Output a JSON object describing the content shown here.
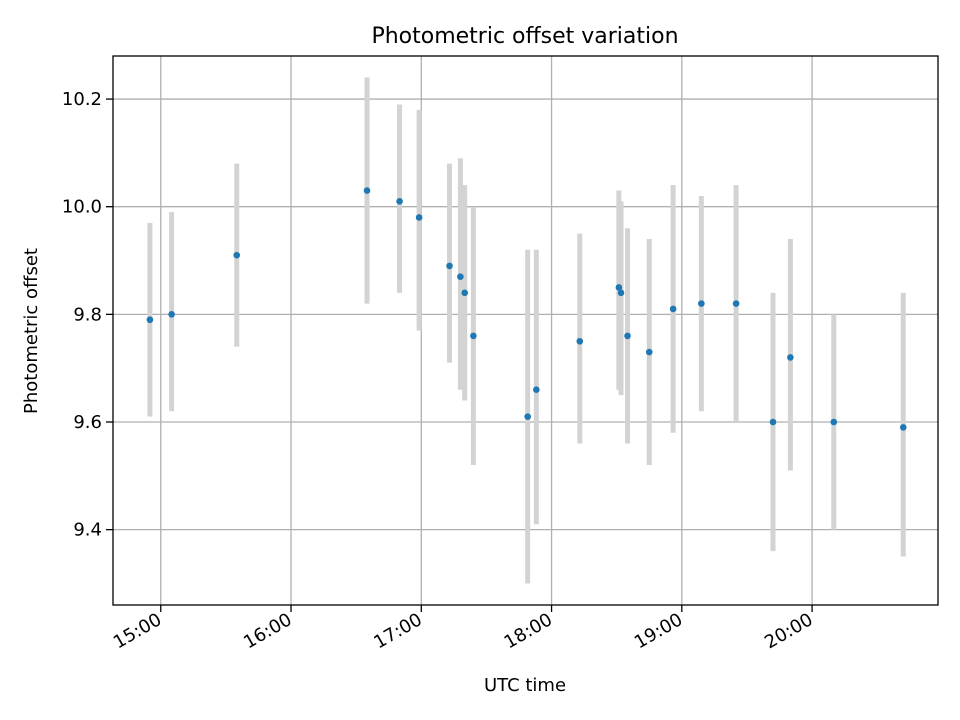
{
  "chart_data": {
    "type": "scatter",
    "title": "Photometric offset variation",
    "xlabel": "UTC time",
    "ylabel": "Photometric offset",
    "x_unit": "UTC time (HH:MM)",
    "xlim": [
      "14:38",
      "20:58"
    ],
    "ylim": [
      9.26,
      10.28
    ],
    "x_ticks": [
      "15:00",
      "16:00",
      "17:00",
      "18:00",
      "19:00",
      "20:00"
    ],
    "y_ticks": [
      9.4,
      9.6,
      9.8,
      10.0,
      10.2
    ],
    "grid": true,
    "point_color": "#1f77b4",
    "errorbar_color": "#d3d3d3",
    "points": [
      {
        "x": "14:55",
        "y": 9.79,
        "err_low": 9.61,
        "err_high": 9.97
      },
      {
        "x": "15:05",
        "y": 9.8,
        "err_low": 9.62,
        "err_high": 9.99
      },
      {
        "x": "15:35",
        "y": 9.91,
        "err_low": 9.74,
        "err_high": 10.08
      },
      {
        "x": "16:35",
        "y": 10.03,
        "err_low": 9.82,
        "err_high": 10.24
      },
      {
        "x": "16:50",
        "y": 10.01,
        "err_low": 9.84,
        "err_high": 10.19
      },
      {
        "x": "16:59",
        "y": 9.98,
        "err_low": 9.77,
        "err_high": 10.18
      },
      {
        "x": "17:13",
        "y": 9.89,
        "err_low": 9.71,
        "err_high": 10.08
      },
      {
        "x": "17:18",
        "y": 9.87,
        "err_low": 9.66,
        "err_high": 10.09
      },
      {
        "x": "17:20",
        "y": 9.84,
        "err_low": 9.64,
        "err_high": 10.04
      },
      {
        "x": "17:24",
        "y": 9.76,
        "err_low": 9.52,
        "err_high": 10.0
      },
      {
        "x": "17:49",
        "y": 9.61,
        "err_low": 9.3,
        "err_high": 9.92
      },
      {
        "x": "17:53",
        "y": 9.66,
        "err_low": 9.41,
        "err_high": 9.92
      },
      {
        "x": "18:13",
        "y": 9.75,
        "err_low": 9.56,
        "err_high": 9.95
      },
      {
        "x": "18:31",
        "y": 9.85,
        "err_low": 9.66,
        "err_high": 10.03
      },
      {
        "x": "18:32",
        "y": 9.84,
        "err_low": 9.65,
        "err_high": 10.01
      },
      {
        "x": "18:35",
        "y": 9.76,
        "err_low": 9.56,
        "err_high": 9.96
      },
      {
        "x": "18:45",
        "y": 9.73,
        "err_low": 9.52,
        "err_high": 9.94
      },
      {
        "x": "18:56",
        "y": 9.81,
        "err_low": 9.58,
        "err_high": 10.04
      },
      {
        "x": "19:09",
        "y": 9.82,
        "err_low": 9.62,
        "err_high": 10.02
      },
      {
        "x": "19:25",
        "y": 9.82,
        "err_low": 9.6,
        "err_high": 10.04
      },
      {
        "x": "19:42",
        "y": 9.6,
        "err_low": 9.36,
        "err_high": 9.84
      },
      {
        "x": "19:50",
        "y": 9.72,
        "err_low": 9.51,
        "err_high": 9.94
      },
      {
        "x": "20:10",
        "y": 9.6,
        "err_low": 9.4,
        "err_high": 9.8
      },
      {
        "x": "20:42",
        "y": 9.59,
        "err_low": 9.35,
        "err_high": 9.84
      }
    ]
  }
}
